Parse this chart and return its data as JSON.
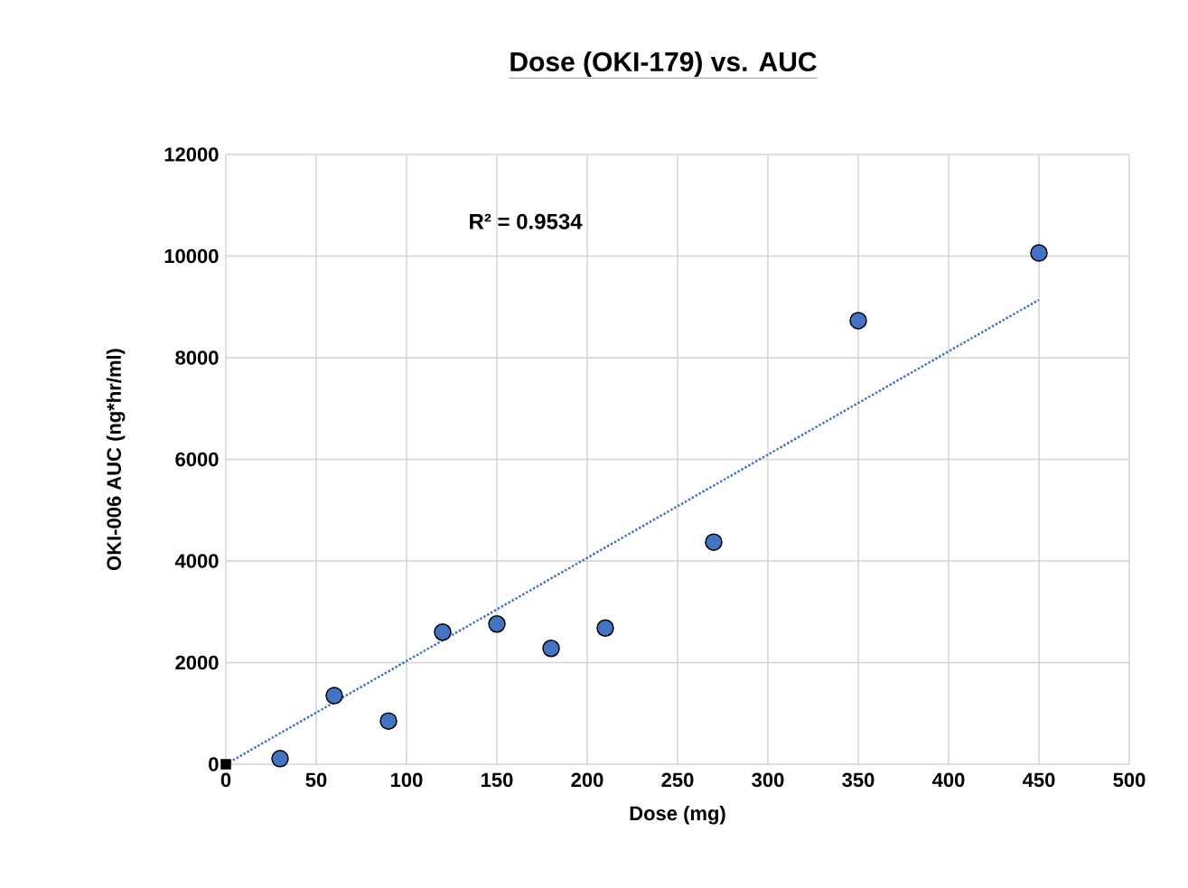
{
  "chart_data": {
    "type": "scatter",
    "title": "Dose (OKI-179) vs. AUC",
    "xlabel": "Dose (mg)",
    "ylabel": "OKI-006 AUC (ng*hr/ml)",
    "annotations": [
      "R² = 0.9534"
    ],
    "series": [
      {
        "color": "#4472c4",
        "marker": "circle",
        "x": [
          30,
          60,
          90,
          120,
          150,
          180,
          210,
          270,
          350,
          450
        ],
        "values": [
          110,
          1350,
          850,
          2600,
          2760,
          2280,
          2680,
          4370,
          8730,
          10060
        ]
      },
      {
        "type": "scatter",
        "color": "#000000",
        "marker": "square",
        "x": [
          0
        ],
        "values": [
          0
        ]
      },
      {
        "type": "line",
        "color": "#4472c4",
        "line_style": "dotted",
        "marker": "none",
        "x": [
          0,
          450
        ],
        "values": [
          0,
          9140
        ]
      }
    ],
    "xlim": [
      0,
      500
    ],
    "ylim": [
      0,
      12000
    ],
    "xticks": [
      0,
      50,
      100,
      150,
      200,
      250,
      300,
      350,
      400,
      450,
      500
    ],
    "yticks": [
      0,
      2000,
      4000,
      6000,
      8000,
      10000,
      12000
    ],
    "grid": true
  }
}
